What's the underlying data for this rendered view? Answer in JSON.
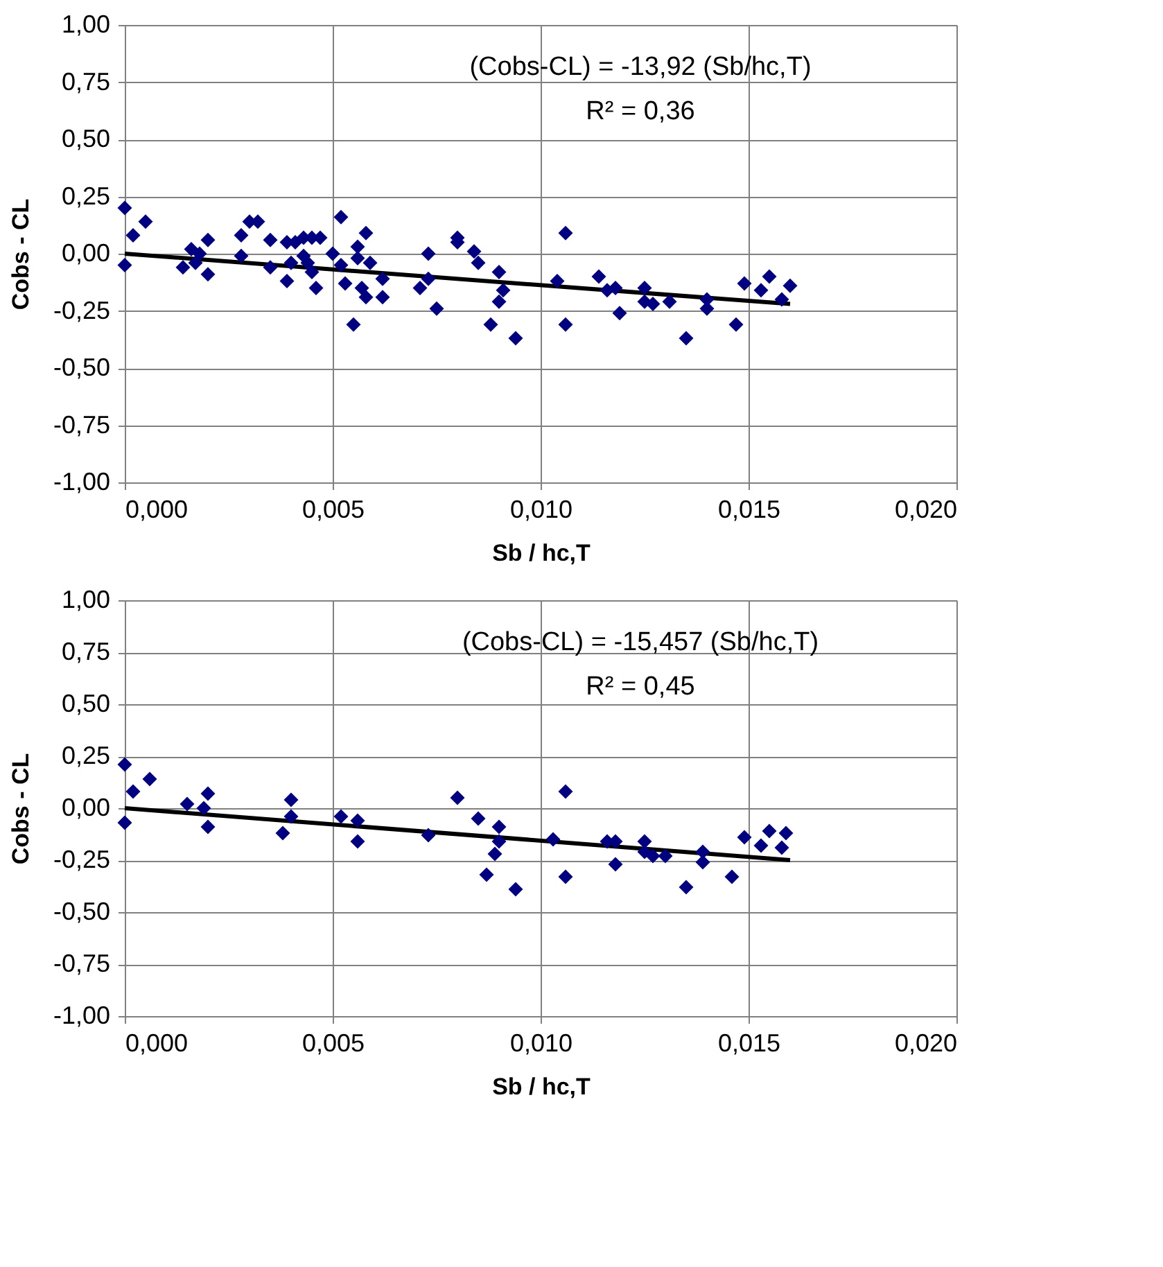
{
  "chart_data": [
    {
      "type": "scatter",
      "xlabel": "Sb / hc,T",
      "ylabel": "Cobs - CL",
      "annotations": [
        "(Cobs-CL) = -13,92 (Sb/hc,T)",
        "R² = 0,36"
      ],
      "xlim": [
        0,
        0.02
      ],
      "xticks": [
        {
          "value": 0,
          "label": "0,000"
        },
        {
          "value": 0.005,
          "label": "0,005"
        },
        {
          "value": 0.01,
          "label": "0,010"
        },
        {
          "value": 0.015,
          "label": "0,015"
        },
        {
          "value": 0.02,
          "label": "0,020"
        }
      ],
      "ylim": [
        -1,
        1
      ],
      "yticks": [
        {
          "value": -1,
          "label": "-1,00"
        },
        {
          "value": -0.75,
          "label": "-0,75"
        },
        {
          "value": -0.5,
          "label": "-0,50"
        },
        {
          "value": -0.25,
          "label": "-0,25"
        },
        {
          "value": 0,
          "label": "0,00"
        },
        {
          "value": 0.25,
          "label": "0,25"
        },
        {
          "value": 0.5,
          "label": "0,50"
        },
        {
          "value": 0.75,
          "label": "0,75"
        },
        {
          "value": 1,
          "label": "1,00"
        }
      ],
      "grid": true,
      "marker": "diamond",
      "series": [
        {
          "color": "#000080",
          "x": [
            0,
            0.0002,
            0.0005,
            0,
            0.0014,
            0.0016,
            0.0017,
            0.0018,
            0.002,
            0.002,
            0.0028,
            0.0028,
            0.003,
            0.0032,
            0.0035,
            0.0035,
            0.0039,
            0.0039,
            0.004,
            0.0041,
            0.0043,
            0.0043,
            0.0044,
            0.0045,
            0.0045,
            0.0046,
            0.0047,
            0.005,
            0.0052,
            0.0052,
            0.0053,
            0.0055,
            0.0056,
            0.0056,
            0.0057,
            0.0058,
            0.0058,
            0.0059,
            0.0062,
            0.0062,
            0.0071,
            0.0073,
            0.0073,
            0.0075,
            0.008,
            0.008,
            0.0084,
            0.0085,
            0.0088,
            0.009,
            0.0091,
            0.009,
            0.0094,
            0.0104,
            0.0106,
            0.0106,
            0.0114,
            0.0116,
            0.0118,
            0.0119,
            0.0125,
            0.0125,
            0.0127,
            0.0131,
            0.0135,
            0.014,
            0.014,
            0.0147,
            0.0149,
            0.0153,
            0.0155,
            0.0158,
            0.016
          ],
          "values": [
            0.2,
            0.08,
            0.14,
            -0.05,
            -0.06,
            0.02,
            -0.04,
            0,
            0.06,
            -0.09,
            0.08,
            -0.01,
            0.14,
            0.14,
            0.06,
            -0.06,
            -0.12,
            0.05,
            -0.04,
            0.05,
            0.07,
            -0.01,
            -0.04,
            0.07,
            -0.08,
            -0.15,
            0.07,
            0,
            0.16,
            -0.05,
            -0.13,
            -0.31,
            0.03,
            -0.02,
            -0.15,
            0.09,
            -0.19,
            -0.04,
            -0.11,
            -0.19,
            -0.15,
            0,
            -0.11,
            -0.24,
            0.07,
            0.05,
            0.01,
            -0.04,
            -0.31,
            -0.08,
            -0.16,
            -0.21,
            -0.37,
            -0.12,
            0.09,
            -0.31,
            -0.1,
            -0.16,
            -0.15,
            -0.26,
            -0.15,
            -0.21,
            -0.22,
            -0.21,
            -0.37,
            -0.2,
            -0.24,
            -0.31,
            -0.13,
            -0.16,
            -0.1,
            -0.2,
            -0.14
          ]
        },
        {
          "type": "line",
          "color": "#000000",
          "marker": "none",
          "line_style": "solid",
          "x": [
            0,
            0.016
          ],
          "values": [
            0,
            -0.22
          ]
        }
      ]
    },
    {
      "type": "scatter",
      "xlabel": "Sb / hc,T",
      "ylabel": "Cobs - CL",
      "annotations": [
        "(Cobs-CL) = -15,457 (Sb/hc,T)",
        "R² = 0,45"
      ],
      "xlim": [
        0,
        0.02
      ],
      "xticks": [
        {
          "value": 0,
          "label": "0,000"
        },
        {
          "value": 0.005,
          "label": "0,005"
        },
        {
          "value": 0.01,
          "label": "0,010"
        },
        {
          "value": 0.015,
          "label": "0,015"
        },
        {
          "value": 0.02,
          "label": "0,020"
        }
      ],
      "ylim": [
        -1,
        1
      ],
      "yticks": [
        {
          "value": -1,
          "label": "-1,00"
        },
        {
          "value": -0.75,
          "label": "-0,75"
        },
        {
          "value": -0.5,
          "label": "-0,50"
        },
        {
          "value": -0.25,
          "label": "-0,25"
        },
        {
          "value": 0,
          "label": "0,00"
        },
        {
          "value": 0.25,
          "label": "0,25"
        },
        {
          "value": 0.5,
          "label": "0,50"
        },
        {
          "value": 0.75,
          "label": "0,75"
        },
        {
          "value": 1,
          "label": "1,00"
        }
      ],
      "grid": true,
      "marker": "diamond",
      "series": [
        {
          "color": "#000080",
          "x": [
            0,
            0.0002,
            0.0006,
            0,
            0.0015,
            0.0019,
            0.002,
            0.002,
            0.004,
            0.004,
            0.0038,
            0.0052,
            0.0056,
            0.0056,
            0.0073,
            0.008,
            0.0085,
            0.0087,
            0.009,
            0.009,
            0.0089,
            0.0094,
            0.0103,
            0.0106,
            0.0106,
            0.0116,
            0.0118,
            0.0118,
            0.0125,
            0.0125,
            0.0127,
            0.013,
            0.0135,
            0.0139,
            0.0139,
            0.0146,
            0.0149,
            0.0153,
            0.0155,
            0.0158,
            0.0159
          ],
          "values": [
            0.21,
            0.08,
            0.14,
            -0.07,
            0.02,
            0,
            0.07,
            -0.09,
            0.04,
            -0.04,
            -0.12,
            -0.04,
            -0.06,
            -0.16,
            -0.13,
            0.05,
            -0.05,
            -0.32,
            -0.09,
            -0.16,
            -0.22,
            -0.39,
            -0.15,
            0.08,
            -0.33,
            -0.16,
            -0.16,
            -0.27,
            -0.16,
            -0.21,
            -0.23,
            -0.23,
            -0.38,
            -0.21,
            -0.26,
            -0.33,
            -0.14,
            -0.18,
            -0.11,
            -0.19,
            -0.12
          ]
        },
        {
          "type": "line",
          "color": "#000000",
          "marker": "none",
          "line_style": "solid",
          "x": [
            0,
            0.016
          ],
          "values": [
            0,
            -0.25
          ]
        }
      ]
    }
  ]
}
